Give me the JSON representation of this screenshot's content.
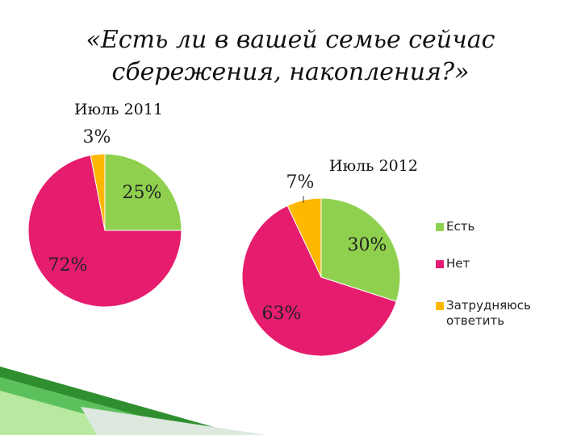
{
  "title_line1": "«Есть ли в вашей семье сейчас",
  "title_line2": "сбережения, накопления?»",
  "colors": {
    "yes": "#8fd14f",
    "no": "#e61d6f",
    "hard": "#ffb800"
  },
  "legend": [
    "Есть",
    "Нет",
    "Затрудняюсь ответить"
  ],
  "chart_data": [
    {
      "type": "pie",
      "title": "Июль 2011",
      "categories": [
        "Есть",
        "Нет",
        "Затрудняюсь ответить"
      ],
      "values": [
        25,
        72,
        3
      ],
      "labels": [
        "25%",
        "72%",
        "3%"
      ]
    },
    {
      "type": "pie",
      "title": "Июль 2012",
      "categories": [
        "Есть",
        "Нет",
        "Затрудняюсь ответить"
      ],
      "values": [
        30,
        63,
        7
      ],
      "labels": [
        "30%",
        "63%",
        "7%"
      ]
    }
  ]
}
